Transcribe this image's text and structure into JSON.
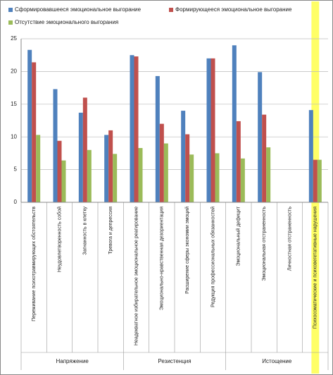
{
  "chart_data": {
    "type": "bar",
    "categories": [
      "Переживание психотравмирующих обстоятельств",
      "Неудовлетворенность собой",
      "Загнанность в клетку",
      "Тревога и депрессия",
      "Неадекватное избирательное эмоциональное реагирование",
      "Эмоционально-нравственная дезориентация",
      "Расширение сферы экономии эмоций",
      "Редукция профессиональных обязанностей",
      "Эмоциональный дефицит",
      "Эмоциональная отстраненность",
      "Личностная отстраненность",
      "Психосоматические и психовегетативные нарушения"
    ],
    "groups": [
      "Напряжение",
      "Резистенция",
      "Истощение"
    ],
    "series": [
      {
        "name": "Сформировавшееся эмоциональное выгорание",
        "color": "#4f81bd",
        "values": [
          23.3,
          17.3,
          13.7,
          10.3,
          22.5,
          19.3,
          14,
          22,
          24,
          19.9,
          null,
          14.1
        ]
      },
      {
        "name": "Формирующееся эмоциональное выгорание",
        "color": "#c0504d",
        "values": [
          21.4,
          9.4,
          16,
          11,
          22.3,
          12,
          10.4,
          22,
          12.4,
          13.4,
          null,
          6.5
        ]
      },
      {
        "name": "Отсутствие эмоционального выгорания",
        "color": "#9bbb59",
        "values": [
          10.3,
          6.4,
          8,
          7.4,
          8.3,
          9,
          7.3,
          7.5,
          6.7,
          8.4,
          null,
          6.5
        ]
      }
    ],
    "ylim": [
      0,
      25
    ],
    "yticks": [
      0,
      5,
      10,
      15,
      20,
      25
    ],
    "grid": true,
    "highlight_color": "#ffff66"
  }
}
